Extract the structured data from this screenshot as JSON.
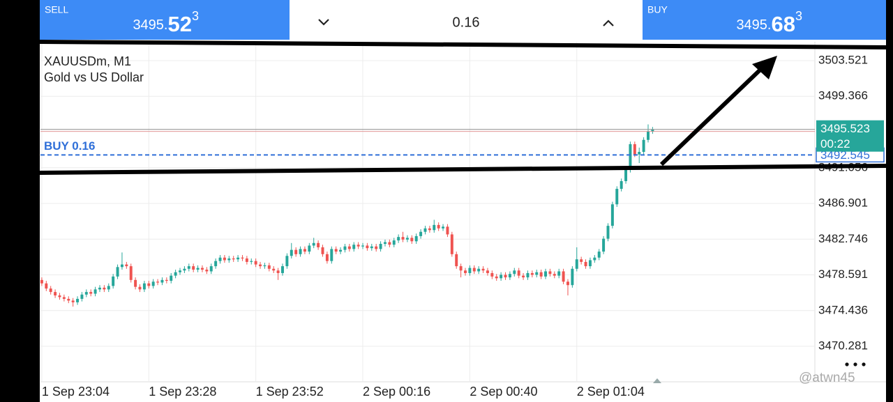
{
  "trade_bar": {
    "sell": {
      "label": "SELL",
      "price_lead": "3495.",
      "price_big": "52",
      "price_sup": "3"
    },
    "volume": "0.16",
    "buy": {
      "label": "BUY",
      "price_lead": "3495.",
      "price_big": "68",
      "price_sup": "3"
    }
  },
  "chart_data": {
    "type": "candlestick",
    "title": "XAUUSDm, M1",
    "subtitle": "Gold vs US Dollar",
    "up_color": "#26a69a",
    "down_color": "#ef5350",
    "grid": true,
    "ylim": [
      3466.15,
      3505.71
    ],
    "yticks": [
      3503.521,
      3499.366,
      3491.056,
      3486.901,
      3482.746,
      3478.591,
      3474.436,
      3470.281
    ],
    "xlim": [
      -0.3,
      173.4
    ],
    "xticks": [
      {
        "value": 0,
        "label": "1 Sep 23:04"
      },
      {
        "value": 24,
        "label": "1 Sep 23:28"
      },
      {
        "value": 48,
        "label": "1 Sep 23:52"
      },
      {
        "value": 72,
        "label": "2 Sep 00:16"
      },
      {
        "value": 96,
        "label": "2 Sep 00:40"
      },
      {
        "value": 120,
        "label": "2 Sep 01:04"
      }
    ],
    "current_price": 3495.523,
    "timer": "00:22",
    "order": {
      "label": "BUY 0.16",
      "price": 3492.545
    },
    "ohlc": [
      [
        3478.0,
        3478.3,
        3477.3,
        3477.6
      ],
      [
        3477.6,
        3477.9,
        3476.7,
        3477.0
      ],
      [
        3477.0,
        3477.3,
        3476.3,
        3476.6
      ],
      [
        3476.6,
        3476.9,
        3475.9,
        3476.2
      ],
      [
        3476.2,
        3476.5,
        3475.7,
        3476.0
      ],
      [
        3476.0,
        3476.3,
        3475.5,
        3475.8
      ],
      [
        3475.8,
        3476.1,
        3475.3,
        3475.6
      ],
      [
        3475.6,
        3475.9,
        3474.9,
        3475.4
      ],
      [
        3475.4,
        3476.1,
        3475.1,
        3475.8
      ],
      [
        3475.8,
        3476.6,
        3475.5,
        3476.3
      ],
      [
        3476.3,
        3476.9,
        3476.0,
        3476.6
      ],
      [
        3476.6,
        3476.9,
        3476.1,
        3476.4
      ],
      [
        3476.4,
        3477.2,
        3476.1,
        3476.9
      ],
      [
        3476.9,
        3477.4,
        3476.6,
        3477.1
      ],
      [
        3477.1,
        3477.4,
        3476.6,
        3476.9
      ],
      [
        3476.9,
        3477.6,
        3476.6,
        3477.3
      ],
      [
        3477.3,
        3478.7,
        3477.0,
        3478.4
      ],
      [
        3478.4,
        3479.8,
        3478.1,
        3479.5
      ],
      [
        3479.5,
        3481.2,
        3479.2,
        3479.8
      ],
      [
        3479.8,
        3480.1,
        3479.3,
        3479.6
      ],
      [
        3479.6,
        3479.9,
        3477.7,
        3478.0
      ],
      [
        3478.0,
        3478.3,
        3476.9,
        3477.2
      ],
      [
        3477.2,
        3477.5,
        3476.6,
        3476.9
      ],
      [
        3476.9,
        3477.9,
        3476.6,
        3477.6
      ],
      [
        3477.6,
        3477.9,
        3477.0,
        3477.3
      ],
      [
        3477.3,
        3478.1,
        3477.0,
        3477.8
      ],
      [
        3477.8,
        3478.1,
        3477.4,
        3477.7
      ],
      [
        3477.7,
        3478.3,
        3477.4,
        3478.0
      ],
      [
        3478.0,
        3478.3,
        3477.6,
        3477.9
      ],
      [
        3477.9,
        3478.8,
        3477.6,
        3478.5
      ],
      [
        3478.5,
        3479.2,
        3478.2,
        3478.9
      ],
      [
        3478.9,
        3479.4,
        3478.6,
        3479.1
      ],
      [
        3479.1,
        3479.6,
        3478.8,
        3479.3
      ],
      [
        3479.3,
        3479.9,
        3479.0,
        3479.6
      ],
      [
        3479.6,
        3479.9,
        3478.9,
        3479.2
      ],
      [
        3479.2,
        3479.7,
        3478.9,
        3479.4
      ],
      [
        3479.4,
        3479.7,
        3478.9,
        3479.2
      ],
      [
        3479.2,
        3479.5,
        3478.7,
        3479.0
      ],
      [
        3479.0,
        3479.9,
        3478.7,
        3479.6
      ],
      [
        3479.6,
        3480.5,
        3479.3,
        3480.2
      ],
      [
        3480.2,
        3480.9,
        3479.9,
        3480.6
      ],
      [
        3480.6,
        3480.9,
        3480.0,
        3480.3
      ],
      [
        3480.3,
        3480.8,
        3480.0,
        3480.5
      ],
      [
        3480.5,
        3480.8,
        3480.1,
        3480.4
      ],
      [
        3480.4,
        3480.9,
        3480.1,
        3480.6
      ],
      [
        3480.6,
        3480.9,
        3480.2,
        3480.5
      ],
      [
        3480.5,
        3480.8,
        3479.8,
        3480.1
      ],
      [
        3480.1,
        3480.5,
        3479.8,
        3480.2
      ],
      [
        3480.2,
        3480.5,
        3479.5,
        3479.8
      ],
      [
        3479.8,
        3480.1,
        3479.3,
        3479.6
      ],
      [
        3479.6,
        3480.0,
        3479.3,
        3479.7
      ],
      [
        3479.7,
        3480.0,
        3479.0,
        3479.3
      ],
      [
        3479.3,
        3479.6,
        3478.8,
        3479.1
      ],
      [
        3479.1,
        3479.4,
        3478.0,
        3478.8
      ],
      [
        3478.8,
        3479.9,
        3478.5,
        3479.6
      ],
      [
        3479.6,
        3481.1,
        3479.3,
        3480.8
      ],
      [
        3480.8,
        3482.3,
        3480.5,
        3481.5
      ],
      [
        3481.5,
        3481.8,
        3480.7,
        3481.0
      ],
      [
        3481.0,
        3481.9,
        3480.7,
        3481.6
      ],
      [
        3481.6,
        3481.9,
        3481.0,
        3481.3
      ],
      [
        3481.3,
        3482.3,
        3481.0,
        3482.0
      ],
      [
        3482.0,
        3482.9,
        3481.7,
        3482.3
      ],
      [
        3482.3,
        3482.6,
        3481.5,
        3481.8
      ],
      [
        3481.8,
        3482.1,
        3480.7,
        3481.0
      ],
      [
        3481.0,
        3481.3,
        3479.9,
        3480.2
      ],
      [
        3480.2,
        3481.9,
        3479.9,
        3481.6
      ],
      [
        3481.6,
        3481.9,
        3481.0,
        3481.3
      ],
      [
        3481.3,
        3481.8,
        3481.0,
        3481.5
      ],
      [
        3481.5,
        3482.2,
        3481.2,
        3481.9
      ],
      [
        3481.9,
        3482.2,
        3481.3,
        3481.6
      ],
      [
        3481.6,
        3482.4,
        3481.3,
        3482.1
      ],
      [
        3482.1,
        3482.4,
        3481.6,
        3481.9
      ],
      [
        3481.9,
        3482.3,
        3481.6,
        3482.0
      ],
      [
        3482.0,
        3482.3,
        3481.4,
        3481.7
      ],
      [
        3481.7,
        3482.2,
        3481.4,
        3481.9
      ],
      [
        3481.9,
        3482.2,
        3481.3,
        3481.6
      ],
      [
        3481.6,
        3482.5,
        3481.3,
        3482.2
      ],
      [
        3482.2,
        3482.7,
        3481.9,
        3482.4
      ],
      [
        3482.4,
        3482.7,
        3481.8,
        3482.1
      ],
      [
        3482.1,
        3482.9,
        3481.8,
        3482.6
      ],
      [
        3482.6,
        3483.3,
        3482.3,
        3483.0
      ],
      [
        3483.0,
        3483.6,
        3482.4,
        3482.7
      ],
      [
        3482.7,
        3483.2,
        3482.4,
        3482.9
      ],
      [
        3482.9,
        3483.2,
        3482.2,
        3482.5
      ],
      [
        3482.5,
        3483.4,
        3482.2,
        3483.1
      ],
      [
        3483.1,
        3483.9,
        3482.8,
        3483.6
      ],
      [
        3483.6,
        3484.3,
        3483.3,
        3484.0
      ],
      [
        3484.0,
        3484.3,
        3483.5,
        3483.8
      ],
      [
        3483.8,
        3485.0,
        3483.5,
        3484.4
      ],
      [
        3484.4,
        3484.7,
        3483.7,
        3484.0
      ],
      [
        3484.0,
        3484.5,
        3483.7,
        3484.2
      ],
      [
        3484.2,
        3484.5,
        3483.0,
        3483.3
      ],
      [
        3483.3,
        3483.6,
        3480.7,
        3481.0
      ],
      [
        3481.0,
        3481.3,
        3479.3,
        3479.6
      ],
      [
        3479.6,
        3479.9,
        3478.3,
        3479.1
      ],
      [
        3479.1,
        3479.4,
        3478.5,
        3478.8
      ],
      [
        3478.8,
        3479.7,
        3478.5,
        3479.4
      ],
      [
        3479.4,
        3479.7,
        3478.7,
        3479.0
      ],
      [
        3479.0,
        3479.6,
        3478.7,
        3479.3
      ],
      [
        3479.3,
        3479.6,
        3478.8,
        3479.1
      ],
      [
        3479.1,
        3479.4,
        3478.5,
        3478.8
      ],
      [
        3478.8,
        3479.1,
        3478.1,
        3478.4
      ],
      [
        3478.4,
        3478.7,
        3477.9,
        3478.2
      ],
      [
        3478.2,
        3478.9,
        3477.9,
        3478.6
      ],
      [
        3478.6,
        3478.9,
        3478.0,
        3478.3
      ],
      [
        3478.3,
        3479.0,
        3478.0,
        3478.7
      ],
      [
        3478.7,
        3479.4,
        3478.4,
        3479.1
      ],
      [
        3479.1,
        3479.4,
        3478.2,
        3478.5
      ],
      [
        3478.5,
        3478.8,
        3478.0,
        3478.3
      ],
      [
        3478.3,
        3479.1,
        3478.0,
        3478.8
      ],
      [
        3478.8,
        3479.1,
        3478.3,
        3478.6
      ],
      [
        3478.6,
        3479.2,
        3478.3,
        3478.9
      ],
      [
        3478.9,
        3479.2,
        3478.1,
        3478.4
      ],
      [
        3478.4,
        3479.3,
        3478.1,
        3479.0
      ],
      [
        3479.0,
        3479.3,
        3478.4,
        3478.7
      ],
      [
        3478.7,
        3479.0,
        3478.2,
        3478.5
      ],
      [
        3478.5,
        3479.3,
        3478.2,
        3479.0
      ],
      [
        3479.0,
        3479.3,
        3477.5,
        3477.8
      ],
      [
        3477.8,
        3478.1,
        3476.2,
        3477.4
      ],
      [
        3477.4,
        3479.6,
        3477.1,
        3479.3
      ],
      [
        3479.3,
        3481.8,
        3479.0,
        3480.4
      ],
      [
        3480.4,
        3480.7,
        3479.8,
        3480.1
      ],
      [
        3480.1,
        3480.4,
        3479.3,
        3479.6
      ],
      [
        3479.6,
        3480.6,
        3479.3,
        3480.3
      ],
      [
        3480.3,
        3480.9,
        3480.0,
        3480.6
      ],
      [
        3480.6,
        3481.6,
        3480.3,
        3481.3
      ],
      [
        3481.3,
        3483.1,
        3481.0,
        3482.8
      ],
      [
        3482.8,
        3484.6,
        3482.5,
        3484.3
      ],
      [
        3484.3,
        3487.1,
        3484.0,
        3486.8
      ],
      [
        3486.8,
        3488.9,
        3486.5,
        3488.6
      ],
      [
        3488.6,
        3489.8,
        3488.3,
        3489.5
      ],
      [
        3489.5,
        3491.1,
        3489.2,
        3490.8
      ],
      [
        3490.8,
        3494.1,
        3490.5,
        3493.8
      ],
      [
        3493.8,
        3494.1,
        3492.3,
        3492.6
      ],
      [
        3492.6,
        3493.4,
        3491.6,
        3492.9
      ],
      [
        3492.9,
        3494.6,
        3492.6,
        3494.3
      ],
      [
        3494.3,
        3496.1,
        3494.0,
        3495.3
      ],
      [
        3495.3,
        3495.8,
        3495.0,
        3495.5
      ]
    ]
  },
  "watermark": "@atwn45"
}
